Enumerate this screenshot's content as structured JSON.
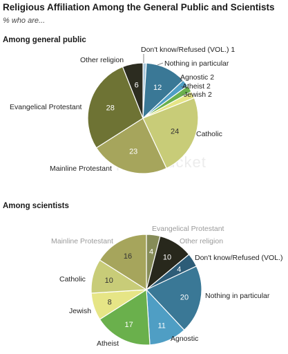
{
  "title": "Religious Affiliation Among the General Public and Scientists",
  "subtitle": "% who are...",
  "watermark": "photobucket",
  "chart_data": [
    {
      "type": "pie",
      "title": "Among general public",
      "slices": [
        {
          "label": "Don't know/Refused (VOL.)",
          "value": 1,
          "color": "#a9c8dc",
          "label_text": "Don't know/Refused (VOL.) 1"
        },
        {
          "label": "Nothing in particular",
          "value": 12,
          "color": "#3a7896",
          "label_text": "Nothing in particular"
        },
        {
          "label": "Agnostic",
          "value": 2,
          "color": "#4f9ec4",
          "label_text": "Agnostic 2"
        },
        {
          "label": "Atheist",
          "value": 2,
          "color": "#6ab04c",
          "label_text": "Atheist 2"
        },
        {
          "label": "Jewish",
          "value": 2,
          "color": "#e6e586",
          "label_text": "Jewish 2"
        },
        {
          "label": "Catholic",
          "value": 24,
          "color": "#c8cc78",
          "label_text": "Catholic"
        },
        {
          "label": "Mainline Protestant",
          "value": 23,
          "color": "#a6a55c",
          "label_text": "Mainline Protestant"
        },
        {
          "label": "Evangelical Protestant",
          "value": 28,
          "color": "#6e7334",
          "label_text": "Evangelical Protestant"
        },
        {
          "label": "Other religion",
          "value": 6,
          "color": "#2c2c20",
          "label_text": "Other religion"
        }
      ]
    },
    {
      "type": "pie",
      "title": "Among scientists",
      "slices": [
        {
          "label": "Evangelical Protestant",
          "value": 4,
          "color": "#868c58",
          "label_text": "Evangelical Protestant"
        },
        {
          "label": "Other religion",
          "value": 10,
          "color": "#28281c",
          "label_text": "Other religion"
        },
        {
          "label": "Don't know/Refused (VOL.)",
          "value": 4,
          "color": "#2d5c77",
          "label_text": "Don't know/Refused (VOL.)"
        },
        {
          "label": "Nothing in particular",
          "value": 20,
          "color": "#3a7896",
          "label_text": "Nothing in particular"
        },
        {
          "label": "Agnostic",
          "value": 11,
          "color": "#4f9ec4",
          "label_text": "Agnostic"
        },
        {
          "label": "Atheist",
          "value": 17,
          "color": "#6ab04c",
          "label_text": "Atheist"
        },
        {
          "label": "Jewish",
          "value": 8,
          "color": "#e6e586",
          "label_text": "Jewish"
        },
        {
          "label": "Catholic",
          "value": 10,
          "color": "#c8cc78",
          "label_text": "Catholic"
        },
        {
          "label": "Mainline Protestant",
          "value": 16,
          "color": "#a6a55c",
          "label_text": "Mainline Protestant"
        }
      ]
    }
  ]
}
